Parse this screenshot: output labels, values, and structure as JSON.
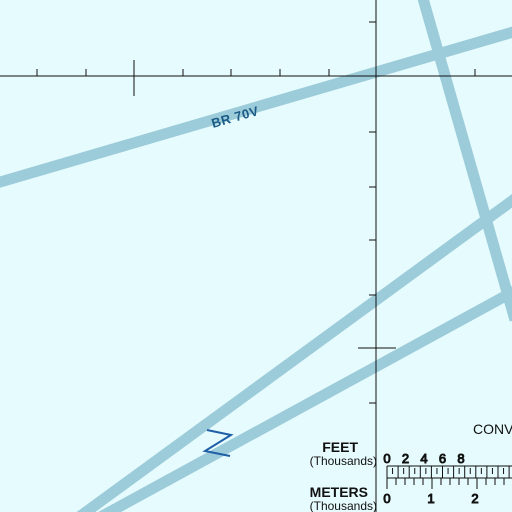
{
  "map": {
    "background_color": "#e6fbfd",
    "airway_color": "#9ccbd9",
    "grid_color": "#111111",
    "symbol_color": "#1f5fa8",
    "airways": [
      {
        "label": "BR 70V"
      }
    ],
    "scale": {
      "feet_title": "FEET",
      "feet_sub": "(Thousands)",
      "feet_ticks": [
        "0",
        "2",
        "4",
        "6",
        "8"
      ],
      "meters_title": "METERS",
      "meters_sub": "(Thousands)",
      "meters_ticks": [
        "0",
        "1",
        "2"
      ],
      "conversion_label": "CONV"
    }
  }
}
